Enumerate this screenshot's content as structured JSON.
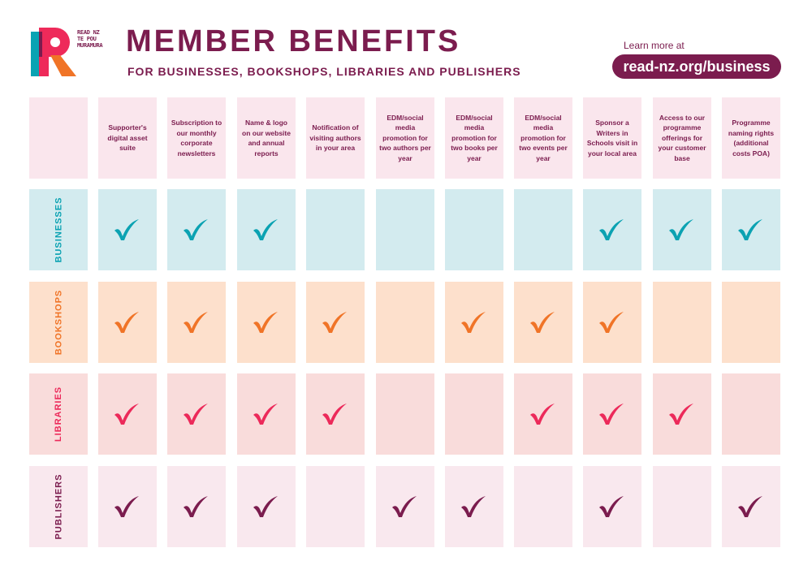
{
  "logo": {
    "lines": [
      "READ NZ",
      "TE POU",
      "MURAMURA"
    ]
  },
  "header": {
    "title": "MEMBER BENEFITS",
    "subtitle": "FOR BUSINESSES, BOOKSHOPS, LIBRARIES AND PUBLISHERS",
    "learn_more": "Learn more at",
    "url": "read-nz.org/business"
  },
  "columns": [
    "Supporter's digital asset suite",
    "Subscription to our monthly corporate newsletters",
    "Name & logo on our website and annual reports",
    "Notification of visiting authors in your area",
    "EDM/social media promotion for two authors per year",
    "EDM/social media promotion for two books per year",
    "EDM/social media promotion for two events per year",
    "Sponsor a Writers in Schools visit in your local area",
    "Access to our programme offerings for your customer base",
    "Programme naming rights (additional costs POA)"
  ],
  "rows": [
    {
      "label": "BUSINESSES",
      "color": "#0ba2b2",
      "bg": "#d3ebef",
      "checks": [
        true,
        true,
        true,
        false,
        false,
        false,
        false,
        true,
        true,
        true
      ]
    },
    {
      "label": "BOOKSHOPS",
      "color": "#f07427",
      "bg": "#fde0cc",
      "checks": [
        true,
        true,
        true,
        true,
        false,
        true,
        true,
        true,
        false,
        false
      ]
    },
    {
      "label": "LIBRARIES",
      "color": "#ec2a5a",
      "bg": "#f9dcdb",
      "checks": [
        true,
        true,
        true,
        true,
        false,
        false,
        true,
        true,
        true,
        false
      ]
    },
    {
      "label": "PUBLISHERS",
      "color": "#7b1c4e",
      "bg": "#f9e8ee",
      "checks": [
        true,
        true,
        true,
        false,
        true,
        true,
        false,
        true,
        false,
        true
      ]
    }
  ]
}
